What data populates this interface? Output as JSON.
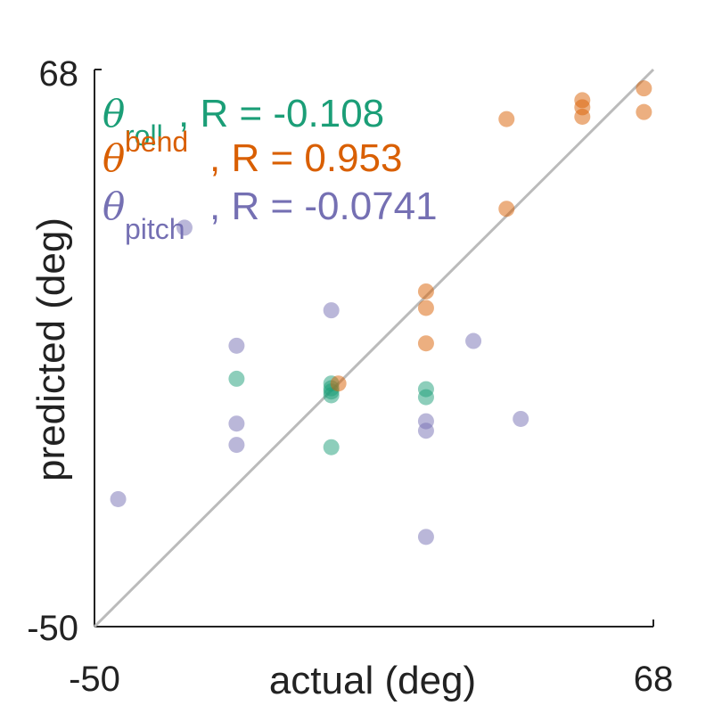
{
  "chart_data": {
    "type": "scatter",
    "xlabel": "actual (deg)",
    "ylabel": "predicted (deg)",
    "xlim": [
      -50,
      68
    ],
    "ylim": [
      -50,
      68
    ],
    "x_tick_labels": [
      "-50",
      "68"
    ],
    "y_tick_labels": [
      "-50",
      "68"
    ],
    "reference_line": "y = x",
    "reference_line_color": "#bbbbbb",
    "grid": false,
    "legend_placement": "top-left",
    "series": [
      {
        "name": "roll",
        "symbol": "θ",
        "r_label": ", R = -0.108",
        "color": "#1b9e77",
        "points": [
          [
            -20,
            2.5
          ],
          [
            0,
            1.5
          ],
          [
            0,
            0.5
          ],
          [
            0,
            -0.2
          ],
          [
            0,
            -1
          ],
          [
            20,
            0.3
          ],
          [
            20,
            -1.4
          ],
          [
            0,
            -12
          ]
        ]
      },
      {
        "name": "bend",
        "symbol": "θ",
        "r_label": ", R = 0.953",
        "color": "#d95f02",
        "points": [
          [
            66,
            64
          ],
          [
            66,
            59
          ],
          [
            53,
            61.5
          ],
          [
            53,
            60
          ],
          [
            53,
            58
          ],
          [
            37,
            57.5
          ],
          [
            37,
            38.5
          ],
          [
            20,
            21
          ],
          [
            20,
            17.5
          ],
          [
            20,
            10
          ],
          [
            1.5,
            1.5
          ]
        ]
      },
      {
        "name": "pitch",
        "symbol": "θ",
        "r_label": ", R = -0.0741",
        "color": "#7570b3",
        "points": [
          [
            -31,
            34.5
          ],
          [
            0,
            17
          ],
          [
            -20,
            9.5
          ],
          [
            30,
            10.5
          ],
          [
            -20,
            -7
          ],
          [
            -20,
            -11.5
          ],
          [
            20,
            -6.5
          ],
          [
            20,
            -8.5
          ],
          [
            40,
            -6
          ],
          [
            -45,
            -23
          ],
          [
            20,
            -31
          ]
        ]
      }
    ]
  }
}
